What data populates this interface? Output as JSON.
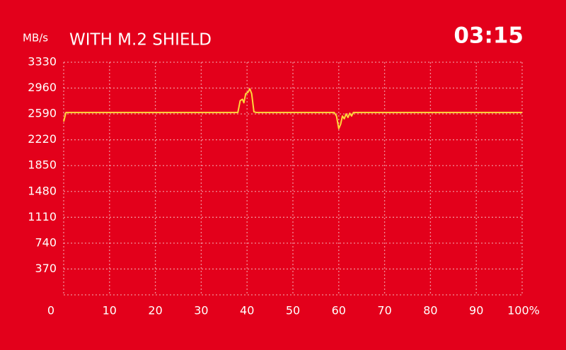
{
  "chart_data": {
    "type": "line",
    "title": "WITH M.2 SHIELD",
    "ylabel": "MB/s",
    "time": "03:15",
    "x": [
      0,
      0.5,
      38,
      38.5,
      39,
      39.3,
      39.7,
      40.2,
      40.6,
      41,
      41.5,
      42,
      59,
      59.5,
      60,
      60.4,
      60.8,
      61.2,
      61.6,
      62,
      62.4,
      62.8,
      63.2,
      100
    ],
    "series": [
      {
        "name": "WITH M.2 SHIELD",
        "color": "#ffd83a",
        "values": [
          2480,
          2610,
          2610,
          2780,
          2800,
          2750,
          2880,
          2900,
          2950,
          2880,
          2620,
          2610,
          2610,
          2560,
          2380,
          2440,
          2560,
          2520,
          2590,
          2540,
          2600,
          2560,
          2610,
          2610
        ]
      }
    ],
    "xlim": [
      0,
      100
    ],
    "xticks": [
      0,
      10,
      20,
      30,
      40,
      50,
      60,
      70,
      80,
      90,
      {
        "value": 100,
        "label": "100%"
      }
    ],
    "ylim": [
      0,
      3330
    ],
    "yticks": [
      370,
      740,
      1110,
      1480,
      1850,
      2220,
      2590,
      2960,
      3330
    ],
    "grid": true
  }
}
